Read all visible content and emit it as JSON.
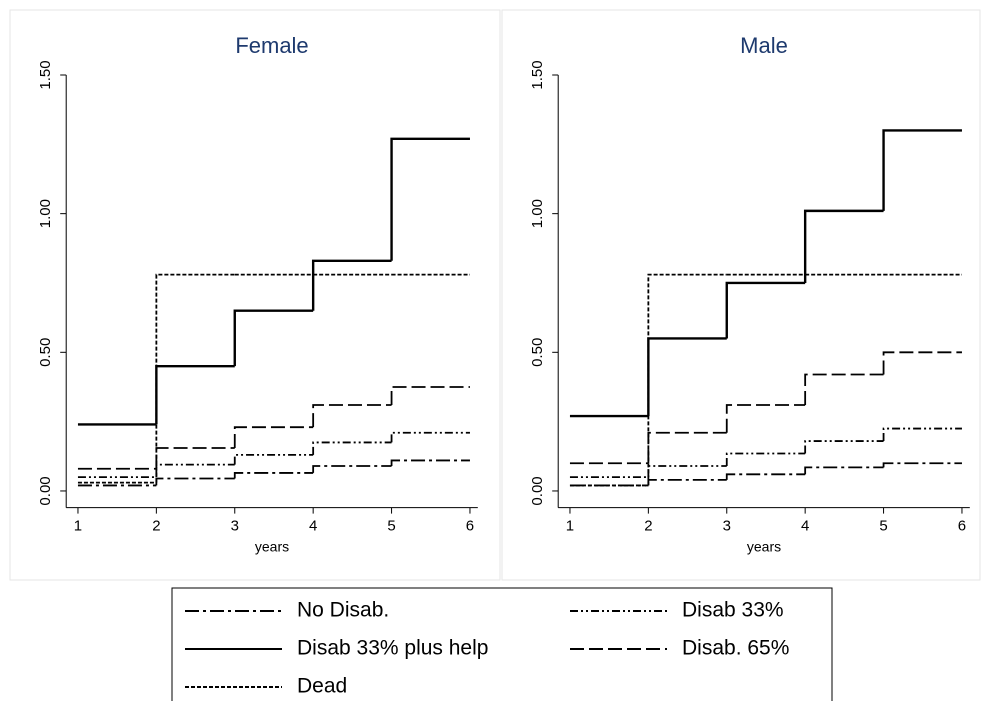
{
  "chart_data": [
    {
      "type": "line",
      "title": "Female",
      "x_label": "years",
      "x": [
        1,
        2,
        3,
        4,
        5,
        6
      ],
      "xlim": [
        0.85,
        6.1
      ],
      "xticks": [
        1,
        2,
        3,
        4,
        5,
        6
      ],
      "ylim": [
        -0.06,
        1.5
      ],
      "yticks": [
        {
          "value": 0,
          "label": "0.00"
        },
        {
          "value": 0.5,
          "label": "0.50"
        },
        {
          "value": 1,
          "label": "1.00"
        },
        {
          "value": 1.5,
          "label": "1.50"
        }
      ],
      "series": [
        {
          "name": "No Disab.",
          "color": "#000000",
          "dash": "14 4 3 4",
          "values": [
            0.02,
            0.045,
            0.065,
            0.09,
            0.11,
            0.11
          ]
        },
        {
          "name": "Disab 33%",
          "color": "#000000",
          "dash": "8 3 2 3 2 3",
          "values": [
            0.05,
            0.095,
            0.13,
            0.175,
            0.21,
            0.21
          ]
        },
        {
          "name": "Disab 33% plus help",
          "color": "#000000",
          "dash": "none",
          "values": [
            0.24,
            0.45,
            0.65,
            0.83,
            1.27,
            1.27
          ]
        },
        {
          "name": "Disab. 65%",
          "color": "#000000",
          "dash": "14 5",
          "values": [
            0.08,
            0.155,
            0.23,
            0.31,
            0.375,
            0.375
          ]
        },
        {
          "name": "Dead",
          "color": "#000000",
          "dash": "4 2",
          "values": [
            0.03,
            0.78,
            0.78,
            0.78,
            0.78,
            0.78
          ]
        }
      ]
    },
    {
      "type": "line",
      "title": "Male",
      "x_label": "years",
      "x": [
        1,
        2,
        3,
        4,
        5,
        6
      ],
      "xlim": [
        0.85,
        6.1
      ],
      "xticks": [
        1,
        2,
        3,
        4,
        5,
        6
      ],
      "ylim": [
        -0.06,
        1.5
      ],
      "yticks": [
        {
          "value": 0,
          "label": "0.00"
        },
        {
          "value": 0.5,
          "label": "0.50"
        },
        {
          "value": 1,
          "label": "1.00"
        },
        {
          "value": 1.5,
          "label": "1.50"
        }
      ],
      "series": [
        {
          "name": "No Disab.",
          "color": "#000000",
          "dash": "14 4 3 4",
          "values": [
            0.02,
            0.04,
            0.06,
            0.085,
            0.1,
            0.1
          ]
        },
        {
          "name": "Disab 33%",
          "color": "#000000",
          "dash": "8 3 2 3 2 3",
          "values": [
            0.05,
            0.09,
            0.135,
            0.18,
            0.225,
            0.225
          ]
        },
        {
          "name": "Disab 33% plus help",
          "color": "#000000",
          "dash": "none",
          "values": [
            0.27,
            0.55,
            0.75,
            1.01,
            1.3,
            1.3
          ]
        },
        {
          "name": "Disab. 65%",
          "color": "#000000",
          "dash": "14 5",
          "values": [
            0.1,
            0.21,
            0.31,
            0.42,
            0.5,
            0.5
          ]
        },
        {
          "name": "Dead",
          "color": "#000000",
          "dash": "4 2",
          "values": [
            0.02,
            0.78,
            0.78,
            0.78,
            0.78,
            0.78
          ]
        }
      ]
    }
  ]
}
